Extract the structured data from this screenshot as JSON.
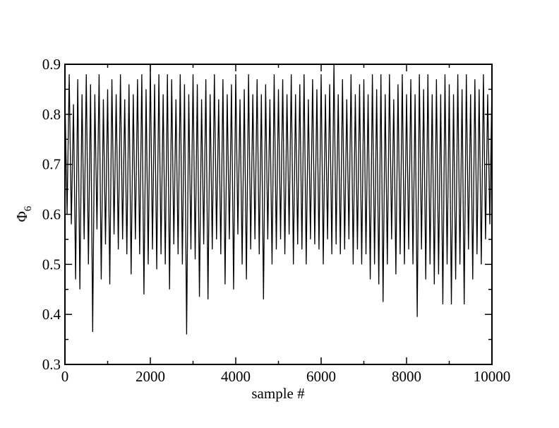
{
  "chart_data": {
    "type": "line",
    "x_label": "sample #",
    "y_label": "Φ",
    "y_label_subscript": "6",
    "xlim": [
      0,
      10000
    ],
    "xticks": [
      0,
      2000,
      4000,
      6000,
      8000,
      10000
    ],
    "xminorticks": [
      1000,
      3000,
      5000,
      7000,
      9000
    ],
    "ylim": [
      0.3,
      0.9
    ],
    "yticks": [
      0.3,
      0.4,
      0.5,
      0.6,
      0.7,
      0.8,
      0.9
    ],
    "yminorticks": [
      0.35,
      0.45,
      0.55,
      0.65,
      0.75,
      0.85
    ],
    "grid": false,
    "x": [
      0,
      50,
      100,
      150,
      200,
      250,
      300,
      350,
      400,
      450,
      500,
      550,
      600,
      650,
      700,
      750,
      800,
      850,
      900,
      950,
      1000,
      1050,
      1100,
      1150,
      1200,
      1250,
      1300,
      1350,
      1400,
      1450,
      1500,
      1550,
      1600,
      1650,
      1700,
      1750,
      1800,
      1850,
      1900,
      1950,
      2000,
      2050,
      2100,
      2150,
      2200,
      2250,
      2300,
      2350,
      2400,
      2450,
      2500,
      2550,
      2600,
      2650,
      2700,
      2750,
      2800,
      2850,
      2900,
      2950,
      3000,
      3050,
      3100,
      3150,
      3200,
      3250,
      3300,
      3350,
      3400,
      3450,
      3500,
      3550,
      3600,
      3650,
      3700,
      3750,
      3800,
      3850,
      3900,
      3950,
      4000,
      4050,
      4100,
      4150,
      4200,
      4250,
      4300,
      4350,
      4400,
      4450,
      4500,
      4550,
      4600,
      4650,
      4700,
      4750,
      4800,
      4850,
      4900,
      4950,
      5000,
      5050,
      5100,
      5150,
      5200,
      5250,
      5300,
      5350,
      5400,
      5450,
      5500,
      5550,
      5600,
      5650,
      5700,
      5750,
      5800,
      5850,
      5900,
      5950,
      6000,
      6050,
      6100,
      6150,
      6200,
      6250,
      6300,
      6350,
      6400,
      6450,
      6500,
      6550,
      6600,
      6650,
      6700,
      6750,
      6800,
      6850,
      6900,
      6950,
      7000,
      7050,
      7100,
      7150,
      7200,
      7250,
      7300,
      7350,
      7400,
      7450,
      7500,
      7550,
      7600,
      7650,
      7700,
      7750,
      7800,
      7850,
      7900,
      7950,
      8000,
      8050,
      8100,
      8150,
      8200,
      8250,
      8300,
      8350,
      8400,
      8450,
      8500,
      8550,
      8600,
      8650,
      8700,
      8750,
      8800,
      8850,
      8900,
      8950,
      9000,
      9050,
      9100,
      9150,
      9200,
      9250,
      9300,
      9350,
      9400,
      9450,
      9500,
      9550,
      9600,
      9650,
      9700,
      9750,
      9800,
      9850,
      9900,
      9950,
      10000
    ],
    "series": [
      {
        "color": "#000000",
        "values": [
          0.84,
          0.6,
          0.88,
          0.58,
          0.82,
          0.47,
          0.87,
          0.45,
          0.84,
          0.55,
          0.88,
          0.5,
          0.86,
          0.365,
          0.84,
          0.57,
          0.88,
          0.47,
          0.83,
          0.54,
          0.85,
          0.46,
          0.87,
          0.56,
          0.84,
          0.53,
          0.88,
          0.55,
          0.83,
          0.52,
          0.86,
          0.48,
          0.84,
          0.55,
          0.87,
          0.52,
          0.88,
          0.44,
          0.85,
          0.5,
          0.9,
          0.53,
          0.86,
          0.49,
          0.88,
          0.52,
          0.84,
          0.5,
          0.88,
          0.45,
          0.87,
          0.54,
          0.83,
          0.52,
          0.88,
          0.5,
          0.86,
          0.36,
          0.84,
          0.53,
          0.88,
          0.51,
          0.86,
          0.435,
          0.83,
          0.54,
          0.87,
          0.43,
          0.84,
          0.53,
          0.88,
          0.55,
          0.83,
          0.52,
          0.87,
          0.46,
          0.84,
          0.55,
          0.86,
          0.45,
          0.88,
          0.56,
          0.83,
          0.5,
          0.85,
          0.47,
          0.88,
          0.53,
          0.84,
          0.55,
          0.87,
          0.52,
          0.84,
          0.43,
          0.86,
          0.55,
          0.83,
          0.5,
          0.88,
          0.53,
          0.85,
          0.55,
          0.87,
          0.52,
          0.84,
          0.56,
          0.88,
          0.5,
          0.84,
          0.54,
          0.86,
          0.53,
          0.88,
          0.5,
          0.83,
          0.55,
          0.87,
          0.54,
          0.85,
          0.53,
          0.88,
          0.5,
          0.84,
          0.55,
          0.86,
          0.52,
          0.9,
          0.54,
          0.84,
          0.52,
          0.87,
          0.53,
          0.83,
          0.55,
          0.88,
          0.5,
          0.84,
          0.53,
          0.86,
          0.5,
          0.87,
          0.52,
          0.84,
          0.47,
          0.88,
          0.5,
          0.85,
          0.46,
          0.88,
          0.425,
          0.84,
          0.5,
          0.88,
          0.55,
          0.83,
          0.48,
          0.86,
          0.52,
          0.88,
          0.5,
          0.84,
          0.53,
          0.87,
          0.5,
          0.84,
          0.395,
          0.88,
          0.53,
          0.85,
          0.47,
          0.88,
          0.5,
          0.84,
          0.46,
          0.87,
          0.48,
          0.84,
          0.42,
          0.88,
          0.5,
          0.86,
          0.42,
          0.84,
          0.47,
          0.88,
          0.5,
          0.85,
          0.42,
          0.88,
          0.53,
          0.84,
          0.47,
          0.87,
          0.52,
          0.85,
          0.5,
          0.88,
          0.55,
          0.84,
          0.58,
          0.86
        ]
      }
    ]
  }
}
